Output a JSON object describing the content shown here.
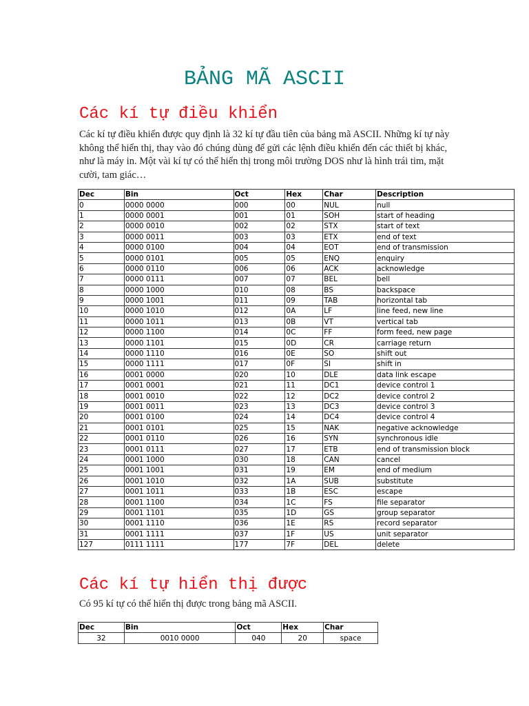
{
  "title": "BẢNG MÃ ASCII",
  "section1": {
    "heading": "Các kí tự điều khiển",
    "text": "Các kí tự điều khiển được quy định là 32 kí tự đầu tiên của bảng mã ASCII. Những kí tự này không thể hiển thị, thay vào đó chúng dùng để gửi các lệnh điều khiển đến các thiết bị khác, như là máy in. Một vài kí tự có thể hiển thị trong môi trường DOS như là hình trái tim, mặt cười, tam giác…",
    "columns": [
      "Dec",
      "Bin",
      "Oct",
      "Hex",
      "Char",
      "Description"
    ],
    "rows": [
      [
        "0",
        "0000 0000",
        "000",
        "00",
        "NUL",
        "null"
      ],
      [
        "1",
        "0000 0001",
        "001",
        "01",
        "SOH",
        "start of heading"
      ],
      [
        "2",
        "0000 0010",
        "002",
        "02",
        "STX",
        "start of text"
      ],
      [
        "3",
        "0000 0011",
        "003",
        "03",
        "ETX",
        "end of text"
      ],
      [
        "4",
        "0000 0100",
        "004",
        "04",
        "EOT",
        "end of transmission"
      ],
      [
        "5",
        "0000 0101",
        "005",
        "05",
        "ENQ",
        "enquiry"
      ],
      [
        "6",
        "0000 0110",
        "006",
        "06",
        "ACK",
        "acknowledge"
      ],
      [
        "7",
        "0000 0111",
        "007",
        "07",
        "BEL",
        "bell"
      ],
      [
        "8",
        "0000 1000",
        "010",
        "08",
        "BS",
        "backspace"
      ],
      [
        "9",
        "0000 1001",
        "011",
        "09",
        "TAB",
        "horizontal tab"
      ],
      [
        "10",
        "0000 1010",
        "012",
        "0A",
        "LF",
        "line feed, new line"
      ],
      [
        "11",
        "0000 1011",
        "013",
        "0B",
        "VT",
        "vertical tab"
      ],
      [
        "12",
        "0000 1100",
        "014",
        "0C",
        "FF",
        "form feed, new page"
      ],
      [
        "13",
        "0000 1101",
        "015",
        "0D",
        "CR",
        "carriage return"
      ],
      [
        "14",
        "0000 1110",
        "016",
        "0E",
        "SO",
        "shift out"
      ],
      [
        "15",
        "0000 1111",
        "017",
        "0F",
        "SI",
        "shift in"
      ],
      [
        "16",
        "0001 0000",
        "020",
        "10",
        "DLE",
        "data link escape"
      ],
      [
        "17",
        "0001 0001",
        "021",
        "11",
        "DC1",
        "device control 1"
      ],
      [
        "18",
        "0001 0010",
        "022",
        "12",
        "DC2",
        "device control 2"
      ],
      [
        "19",
        "0001 0011",
        "023",
        "13",
        "DC3",
        "device control 3"
      ],
      [
        "20",
        "0001 0100",
        "024",
        "14",
        "DC4",
        "device control 4"
      ],
      [
        "21",
        "0001 0101",
        "025",
        "15",
        "NAK",
        "negative acknowledge"
      ],
      [
        "22",
        "0001 0110",
        "026",
        "16",
        "SYN",
        "synchronous idle"
      ],
      [
        "23",
        "0001 0111",
        "027",
        "17",
        "ETB",
        "end of transmission block"
      ],
      [
        "24",
        "0001 1000",
        "030",
        "18",
        "CAN",
        "cancel"
      ],
      [
        "25",
        "0001 1001",
        "031",
        "19",
        "EM",
        "end of medium"
      ],
      [
        "26",
        "0001 1010",
        "032",
        "1A",
        "SUB",
        "substitute"
      ],
      [
        "27",
        "0001 1011",
        "033",
        "1B",
        "ESC",
        "escape"
      ],
      [
        "28",
        "0001 1100",
        "034",
        "1C",
        "FS",
        "file separator"
      ],
      [
        "29",
        "0001 1101",
        "035",
        "1D",
        "GS",
        "group separator"
      ],
      [
        "30",
        "0001 1110",
        "036",
        "1E",
        "RS",
        "record separator"
      ],
      [
        "31",
        "0001 1111",
        "037",
        "1F",
        "US",
        "unit separator"
      ],
      [
        "127",
        "0111 1111",
        "177",
        "7F",
        "DEL",
        "delete"
      ]
    ]
  },
  "section2": {
    "heading": "Các kí tự hiển thị được",
    "text": "Có 95 kí tự có thể hiển thị được trong bảng mã ASCII.",
    "columns": [
      "Dec",
      "Bin",
      "Oct",
      "Hex",
      "Char"
    ],
    "rows": [
      [
        "32",
        "0010 0000",
        "040",
        "20",
        "space"
      ]
    ]
  }
}
